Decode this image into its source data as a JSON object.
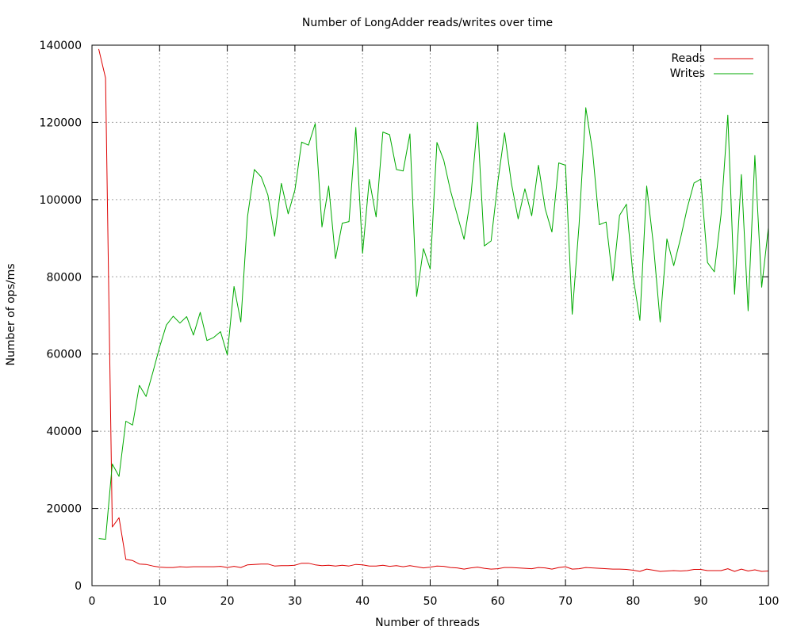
{
  "chart_data": {
    "type": "line",
    "title": "Number of LongAdder reads/writes over time",
    "xlabel": "Number of threads",
    "ylabel": "Number of ops/ms",
    "xlim": [
      0,
      100
    ],
    "ylim": [
      0,
      140000
    ],
    "xticks": [
      0,
      10,
      20,
      30,
      40,
      50,
      60,
      70,
      80,
      90,
      100
    ],
    "yticks": [
      0,
      20000,
      40000,
      60000,
      80000,
      100000,
      120000,
      140000
    ],
    "grid": true,
    "legend_position": "top-right",
    "x": [
      1,
      2,
      3,
      4,
      5,
      6,
      7,
      8,
      9,
      10,
      11,
      12,
      13,
      14,
      15,
      16,
      17,
      18,
      19,
      20,
      21,
      22,
      23,
      24,
      25,
      26,
      27,
      28,
      29,
      30,
      31,
      32,
      33,
      34,
      35,
      36,
      37,
      38,
      39,
      40,
      41,
      42,
      43,
      44,
      45,
      46,
      47,
      48,
      49,
      50,
      51,
      52,
      53,
      54,
      55,
      56,
      57,
      58,
      59,
      60,
      61,
      62,
      63,
      64,
      65,
      66,
      67,
      68,
      69,
      70,
      71,
      72,
      73,
      74,
      75,
      76,
      77,
      78,
      79,
      80,
      81,
      82,
      83,
      84,
      85,
      86,
      87,
      88,
      89,
      90,
      91,
      92,
      93,
      94,
      95,
      96,
      97,
      98,
      99,
      100
    ],
    "series": [
      {
        "name": "Reads",
        "color": "#dd0000",
        "values": [
          139000,
          131500,
          15200,
          17600,
          6800,
          6500,
          5600,
          5500,
          5100,
          4800,
          4700,
          4700,
          4900,
          4800,
          4900,
          4900,
          4900,
          4900,
          5000,
          4700,
          5000,
          4700,
          5400,
          5500,
          5600,
          5600,
          5100,
          5200,
          5200,
          5300,
          5800,
          5800,
          5400,
          5200,
          5300,
          5100,
          5300,
          5100,
          5500,
          5400,
          5100,
          5100,
          5300,
          5000,
          5200,
          4900,
          5200,
          4900,
          4600,
          4800,
          5100,
          5000,
          4700,
          4600,
          4300,
          4600,
          4800,
          4500,
          4300,
          4400,
          4700,
          4700,
          4600,
          4500,
          4400,
          4700,
          4600,
          4300,
          4700,
          4900,
          4300,
          4400,
          4700,
          4600,
          4500,
          4400,
          4300,
          4300,
          4200,
          4000,
          3700,
          4300,
          4000,
          3700,
          3800,
          3900,
          3800,
          3900,
          4200,
          4200,
          3900,
          3900,
          3900,
          4400,
          3700,
          4300,
          3800,
          4100,
          3700,
          3800
        ]
      },
      {
        "name": "Writes",
        "color": "#00aa00",
        "values": [
          12200,
          12000,
          31500,
          28300,
          42600,
          41600,
          51900,
          49000,
          55300,
          61800,
          67500,
          69800,
          68000,
          69700,
          64900,
          70800,
          63500,
          64300,
          65800,
          59800,
          77500,
          68300,
          95700,
          107800,
          105900,
          101200,
          90500,
          104200,
          96300,
          102500,
          114900,
          114100,
          119700,
          92900,
          103500,
          84700,
          93900,
          94300,
          118700,
          86100,
          105200,
          95500,
          117500,
          116800,
          107800,
          107400,
          117000,
          74900,
          87300,
          82000,
          114800,
          110200,
          102300,
          96000,
          89700,
          100700,
          120000,
          88000,
          89300,
          104600,
          117300,
          104200,
          95000,
          102800,
          95800,
          108900,
          97600,
          91600,
          109500,
          108900,
          70300,
          93400,
          123800,
          112600,
          93500,
          94200,
          79000,
          95900,
          98800,
          80000,
          68700,
          103500,
          88300,
          68300,
          89800,
          82900,
          89900,
          97800,
          104300,
          105300,
          83700,
          81300,
          96200,
          121900,
          75500,
          106500,
          71200,
          111400,
          77300,
          92700
        ]
      }
    ]
  }
}
